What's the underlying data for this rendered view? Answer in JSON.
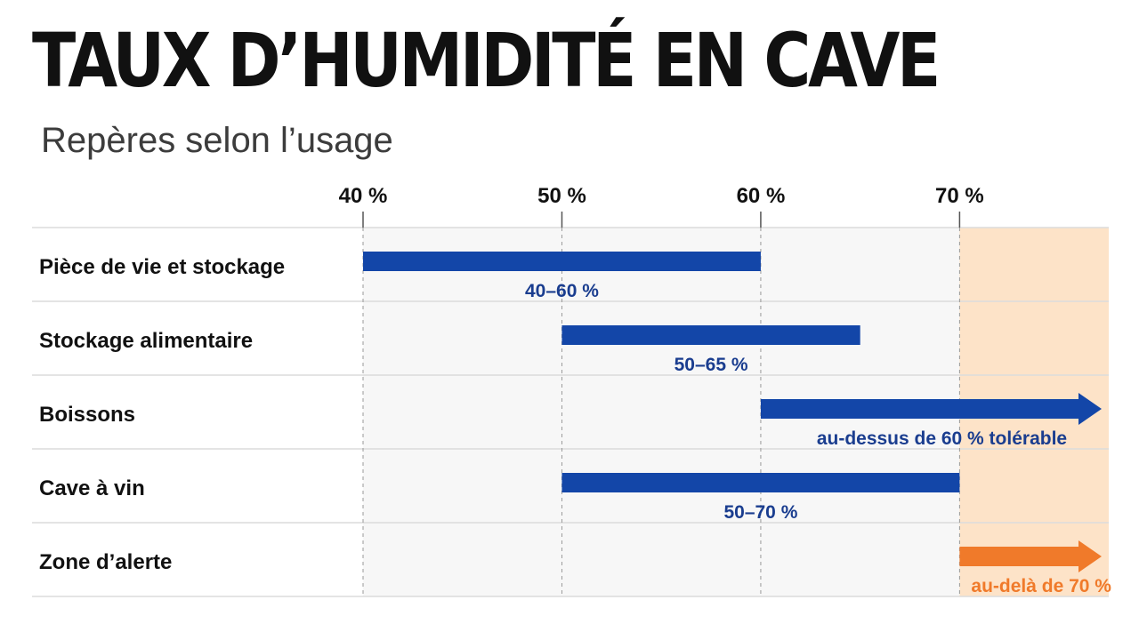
{
  "title": "TAUX D’HUMIDITÉ EN CAVE",
  "subtitle": "Repères selon l’usage",
  "colors": {
    "bar": "#1346a8",
    "bar_label": "#1a3d8f",
    "alert": "#f07a2a",
    "alert_zone": "#fde3c8",
    "plot_bg": "#f7f7f7"
  },
  "chart_data": {
    "type": "bar",
    "orientation": "horizontal",
    "title": "TAUX D’HUMIDITÉ EN CAVE",
    "subtitle": "Repères selon l’usage",
    "x_ticks": [
      40,
      50,
      60,
      70
    ],
    "x_tick_labels": [
      "40 %",
      "50 %",
      "60 %",
      "70 %"
    ],
    "xlim": [
      40,
      77.5
    ],
    "grid": true,
    "highlight_zone": {
      "from": 70,
      "to": 77.5,
      "color": "#fde3c8"
    },
    "categories": [
      "Pièce de vie et stockage",
      "Stockage alimentaire",
      "Boissons",
      "Cave à vin",
      "Zone d’alerte"
    ],
    "ranges": [
      {
        "category": "Pièce de vie et stockage",
        "start": 40,
        "end": 60,
        "open_ended": false,
        "label": "40–60 %",
        "color": "#1346a8"
      },
      {
        "category": "Stockage alimentaire",
        "start": 50,
        "end": 65,
        "open_ended": false,
        "label": "50–65 %",
        "color": "#1346a8"
      },
      {
        "category": "Boissons",
        "start": 60,
        "end": null,
        "open_ended": true,
        "label": "au-dessus de 60 %  tolérable",
        "color": "#1346a8"
      },
      {
        "category": "Cave à vin",
        "start": 50,
        "end": 70,
        "open_ended": false,
        "label": "50–70 %",
        "color": "#1346a8"
      },
      {
        "category": "Zone d’alerte",
        "start": 70,
        "end": null,
        "open_ended": true,
        "label": "au-delà de 70 %",
        "color": "#f07a2a"
      }
    ]
  }
}
